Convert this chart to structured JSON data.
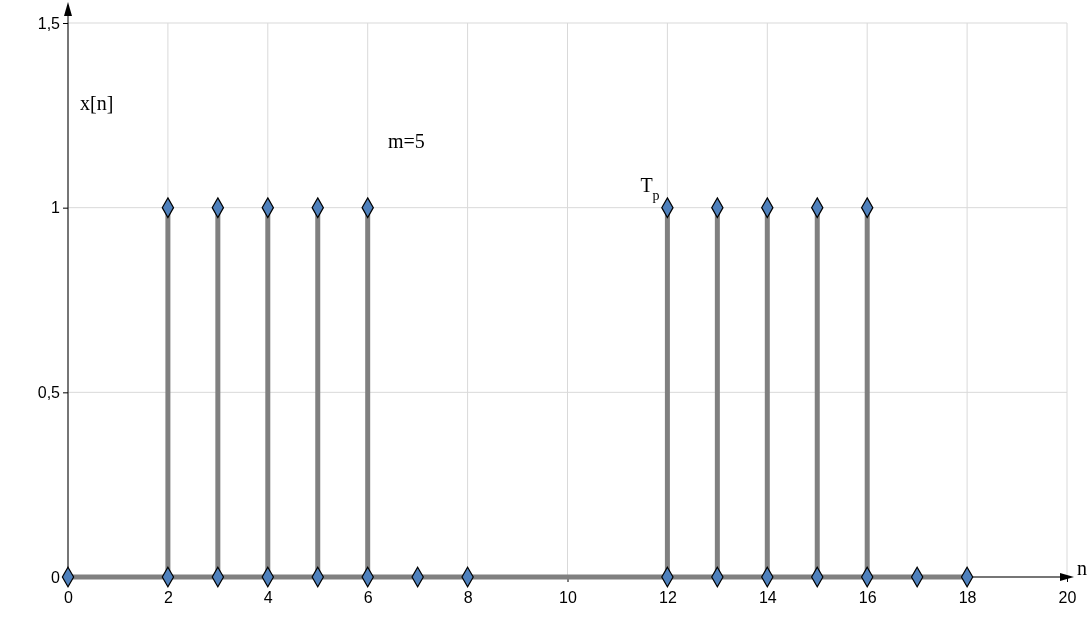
{
  "chart_data": {
    "type": "lollipop",
    "xlabel": "n",
    "ylabel": "x[n]",
    "xlim": [
      0,
      20
    ],
    "xticks": [
      0,
      2,
      4,
      6,
      8,
      10,
      12,
      14,
      16,
      18,
      20
    ],
    "ylim": [
      0,
      1.5
    ],
    "yticks": [
      0,
      {
        "value": 0.5,
        "label": "0,5"
      },
      1,
      {
        "value": 1.5,
        "label": "1,5"
      }
    ],
    "grid": true,
    "marker": "diamond",
    "series": [
      {
        "type": "line",
        "color": "#808080",
        "x": [
          0,
          18
        ],
        "values": [
          0,
          0
        ],
        "marker": "none"
      },
      {
        "type": "scatter",
        "color": "#4f81bd",
        "x": [
          0,
          2,
          3,
          4,
          5,
          6,
          7,
          8,
          12,
          13,
          14,
          15,
          16,
          17,
          18
        ],
        "values": [
          0,
          0,
          0,
          0,
          0,
          0,
          0,
          0,
          0,
          0,
          0,
          0,
          0,
          0,
          0
        ]
      },
      {
        "color": "#4f81bd",
        "x": [
          2,
          3,
          4,
          5,
          6,
          12,
          13,
          14,
          15,
          16
        ],
        "values": [
          1,
          1,
          1,
          1,
          1,
          1,
          1,
          1,
          1,
          1
        ]
      }
    ],
    "annotations": [
      "m=5",
      {
        "text": "T$_{p}$",
        "x": 12,
        "y": 1
      }
    ]
  }
}
